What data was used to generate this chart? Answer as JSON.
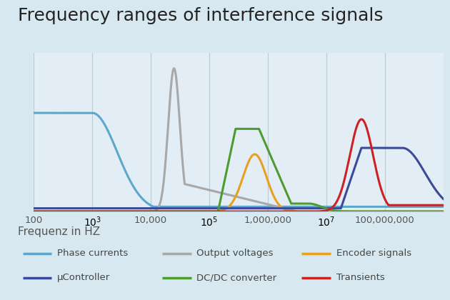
{
  "title": "Frequency ranges of interference signals",
  "xlabel": "Frequenz in HZ",
  "background_color": "#d8e8f0",
  "plot_bg_color": "#e2edf5",
  "title_fontsize": 18,
  "xlabel_fontsize": 11,
  "grid_color": "#b8ccd8",
  "series": [
    {
      "name": "Phase currents",
      "color": "#5ba8cc",
      "linewidth": 2.2
    },
    {
      "name": "Output voltages",
      "color": "#a8a8a8",
      "linewidth": 2.2
    },
    {
      "name": "Encoder signals",
      "color": "#e8a020",
      "linewidth": 2.2
    },
    {
      "name": "μController",
      "color": "#3a4a9a",
      "linewidth": 2.2
    },
    {
      "name": "DC/DC converter",
      "color": "#4d9c30",
      "linewidth": 2.2
    },
    {
      "name": "Transients",
      "color": "#cc2222",
      "linewidth": 2.2
    }
  ],
  "xtick_labels_shown": [
    "100",
    "10,000",
    "1,000,000",
    "100,000,000"
  ],
  "xtick_positions_shown": [
    2,
    4,
    6,
    8
  ],
  "xtick_minor_positions": [
    3,
    5,
    7
  ]
}
